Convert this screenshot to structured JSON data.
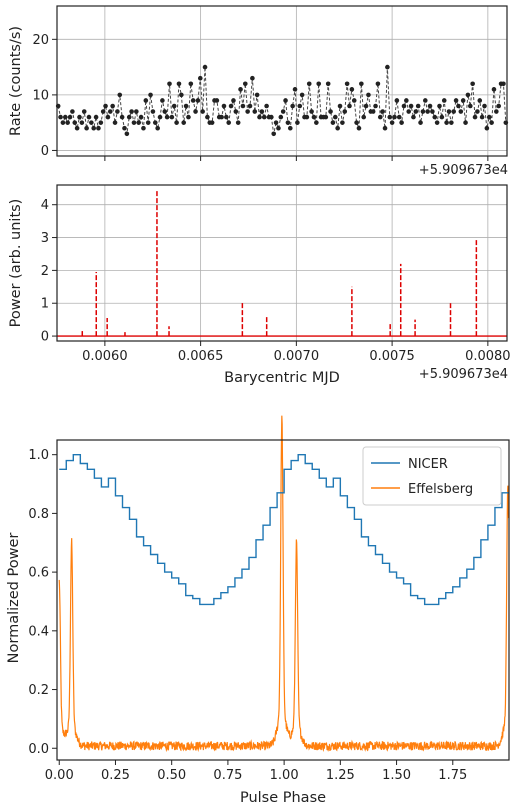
{
  "chart_data": [
    {
      "type": "line",
      "ylabel": "Rate (counts/s)",
      "offset_text": "+5.909673e4",
      "ylim": [
        -1,
        26
      ],
      "xlim": [
        0.00575,
        0.0081
      ],
      "yticks": [
        0,
        10,
        20
      ],
      "ytick_labels": [
        "0",
        "10",
        "20"
      ],
      "grid": true,
      "color": "#333333",
      "series": [
        {
          "values": [
            8,
            6,
            5,
            6,
            5,
            6,
            7,
            5,
            4,
            6,
            5,
            7,
            4,
            6,
            5,
            4,
            6,
            4,
            5,
            7,
            8,
            6,
            7,
            8,
            5,
            7,
            10,
            6,
            4,
            3,
            6,
            7,
            5,
            7,
            5,
            6,
            4,
            9,
            5,
            10,
            7,
            5,
            4,
            6,
            9,
            7,
            6,
            12,
            6,
            8,
            5,
            12,
            10,
            5,
            8,
            6,
            12,
            9,
            7,
            9,
            13,
            7,
            15,
            6,
            5,
            5,
            9,
            9,
            6,
            6,
            8,
            6,
            5,
            8,
            9,
            7,
            5,
            11,
            8,
            12,
            7,
            8,
            13,
            7,
            10,
            6,
            7,
            6,
            8,
            6,
            6,
            3,
            5,
            4,
            6,
            7,
            9,
            5,
            4,
            8,
            11,
            5,
            8,
            10,
            6,
            6,
            12,
            7,
            6,
            5,
            12,
            6,
            6,
            6,
            12,
            7,
            5,
            6,
            4,
            8,
            5,
            7,
            12,
            8,
            11,
            9,
            5,
            4,
            12,
            6,
            8,
            10,
            7,
            7,
            8,
            12,
            6,
            7,
            4,
            15,
            6,
            5,
            6,
            9,
            6,
            5,
            8,
            9,
            7,
            8,
            6,
            7,
            8,
            5,
            7,
            9,
            7,
            8,
            7,
            6,
            5,
            8,
            6,
            9,
            5,
            7,
            5,
            7,
            9,
            8,
            7,
            9,
            5,
            10,
            8,
            12,
            6,
            7,
            9,
            6,
            8,
            4,
            6,
            5,
            11,
            7,
            8,
            12,
            12,
            5
          ]
        }
      ]
    },
    {
      "type": "bar",
      "xlabel": "Barycentric MJD",
      "ylabel": "Power (arb. units)",
      "offset_text": "+5.909673e4",
      "xlim": [
        0.00575,
        0.0081
      ],
      "ylim": [
        -0.15,
        4.6
      ],
      "xticks": [
        0.006,
        0.0065,
        0.007,
        0.0075,
        0.008
      ],
      "xtick_labels": [
        "0.0060",
        "0.0065",
        "0.0070",
        "0.0075",
        "0.0080"
      ],
      "yticks": [
        0,
        1,
        2,
        3,
        4
      ],
      "ytick_labels": [
        "0",
        "1",
        "2",
        "3",
        "4"
      ],
      "grid": true,
      "color": "#dd0000",
      "pulses": [
        {
          "x": 0.005882,
          "y": 0.2
        },
        {
          "x": 0.005955,
          "y": 1.95
        },
        {
          "x": 0.006012,
          "y": 0.55
        },
        {
          "x": 0.006105,
          "y": 0.12
        },
        {
          "x": 0.006272,
          "y": 4.45
        },
        {
          "x": 0.006335,
          "y": 0.3
        },
        {
          "x": 0.006718,
          "y": 1.05
        },
        {
          "x": 0.006845,
          "y": 0.6
        },
        {
          "x": 0.00729,
          "y": 1.5
        },
        {
          "x": 0.00749,
          "y": 0.4
        },
        {
          "x": 0.007545,
          "y": 2.2
        },
        {
          "x": 0.00762,
          "y": 0.5
        },
        {
          "x": 0.007805,
          "y": 1.0
        },
        {
          "x": 0.00794,
          "y": 2.95
        }
      ]
    },
    {
      "type": "line",
      "xlabel": "Pulse Phase",
      "ylabel": "Normalized Power",
      "xlim": [
        -0.01,
        2.0
      ],
      "ylim": [
        -0.04,
        1.05
      ],
      "xticks": [
        0,
        0.25,
        0.5,
        0.75,
        1.0,
        1.25,
        1.5,
        1.75
      ],
      "xtick_labels": [
        "0.00",
        "0.25",
        "0.50",
        "0.75",
        "1.00",
        "1.25",
        "1.50",
        "1.75"
      ],
      "yticks": [
        0,
        0.2,
        0.4,
        0.6,
        0.8,
        1.0
      ],
      "ytick_labels": [
        "0.0",
        "0.2",
        "0.4",
        "0.6",
        "0.8",
        "1.0"
      ],
      "legend": "top-right",
      "series": [
        {
          "name": "NICER",
          "color": "#1f77b4",
          "step": true,
          "bin_width": 0.03125,
          "values": [
            0.95,
            0.98,
            1.0,
            0.97,
            0.95,
            0.92,
            0.89,
            0.92,
            0.86,
            0.82,
            0.78,
            0.72,
            0.69,
            0.66,
            0.63,
            0.6,
            0.58,
            0.56,
            0.52,
            0.51,
            0.49,
            0.49,
            0.51,
            0.53,
            0.55,
            0.58,
            0.61,
            0.65,
            0.71,
            0.76,
            0.82,
            0.87
          ]
        },
        {
          "name": "Effelsberg",
          "color": "#ff7f0e",
          "peaks": [
            {
              "x": 0.0,
              "h": 0.5
            },
            {
              "x": 0.055,
              "h": 0.62
            },
            {
              "x": 0.99,
              "h": 1.0
            },
            {
              "x": 1.055,
              "h": 0.62
            },
            {
              "x": 1.995,
              "h": 0.8
            }
          ]
        }
      ]
    }
  ]
}
